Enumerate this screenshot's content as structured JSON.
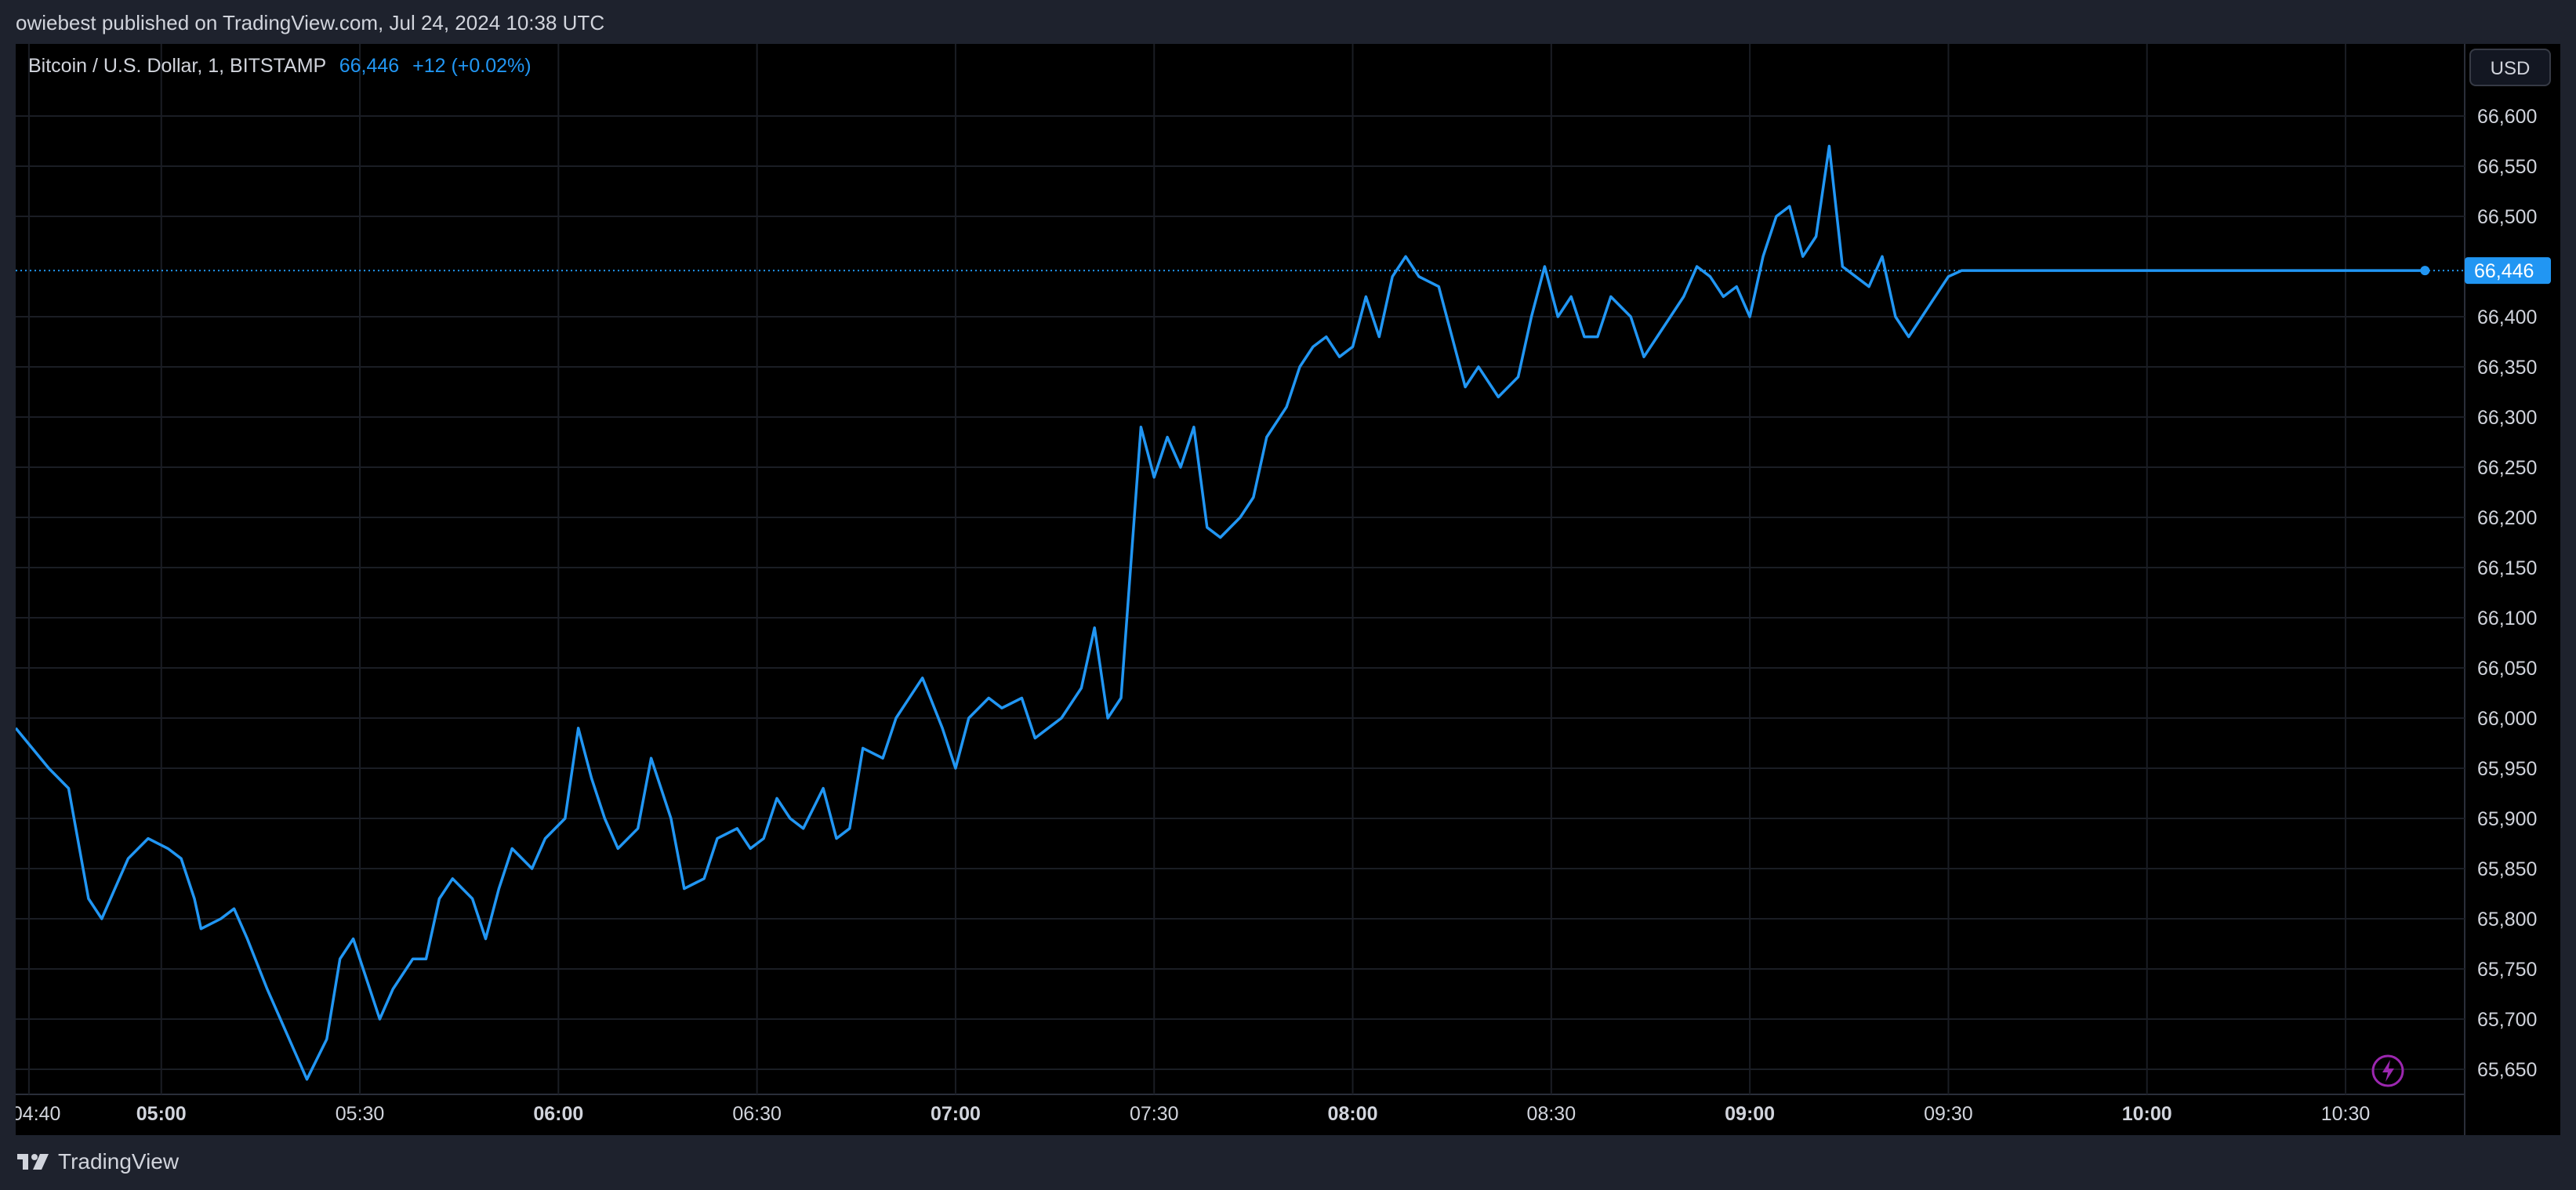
{
  "publish_caption": "owiebest published on TradingView.com, Jul 24, 2024 10:38 UTC",
  "legend": {
    "symbol": "Bitcoin / U.S. Dollar, 1, BITSTAMP",
    "last": "66,446",
    "change": "+12 (+0.02%)"
  },
  "currency_button": "USD",
  "brand": "TradingView",
  "last_price_label": "66,446",
  "colors": {
    "line": "#2196f3",
    "background": "#000000",
    "grid": "#1a1d24",
    "frame": "#1e222d",
    "text": "#d1d4dc",
    "alert_icon": "#9c27b0"
  },
  "icons": [
    "tradingview-logo-icon",
    "lightning-alert-icon"
  ],
  "chart_data": {
    "type": "line",
    "title": "Bitcoin / U.S. Dollar, 1, BITSTAMP",
    "xlabel": "",
    "ylabel": "",
    "ylim": [
      65625,
      66625
    ],
    "xlim": [
      "04:38",
      "10:48"
    ],
    "grid": true,
    "y_ticks": [
      "66,600",
      "66,550",
      "66,500",
      "66,400",
      "66,350",
      "66,300",
      "66,250",
      "66,200",
      "66,150",
      "66,100",
      "66,050",
      "66,000",
      "65,950",
      "65,900",
      "65,850",
      "65,800",
      "65,750",
      "65,700",
      "65,650"
    ],
    "x_ticks": [
      {
        "label": "04:40",
        "time": "04:40",
        "bold": false
      },
      {
        "label": "05:00",
        "time": "05:00",
        "bold": true
      },
      {
        "label": "05:30",
        "time": "05:30",
        "bold": false
      },
      {
        "label": "06:00",
        "time": "06:00",
        "bold": true
      },
      {
        "label": "06:30",
        "time": "06:30",
        "bold": false
      },
      {
        "label": "07:00",
        "time": "07:00",
        "bold": true
      },
      {
        "label": "07:30",
        "time": "07:30",
        "bold": false
      },
      {
        "label": "08:00",
        "time": "08:00",
        "bold": true
      },
      {
        "label": "08:30",
        "time": "08:30",
        "bold": false
      },
      {
        "label": "09:00",
        "time": "09:00",
        "bold": true
      },
      {
        "label": "09:30",
        "time": "09:30",
        "bold": false
      },
      {
        "label": "10:00",
        "time": "10:00",
        "bold": true
      },
      {
        "label": "10:30",
        "time": "10:30",
        "bold": false
      }
    ],
    "last_value": 66446,
    "series": [
      {
        "x": [
          "04:38",
          "04:43",
          "04:46",
          "04:49",
          "04:51",
          "04:53",
          "04:55",
          "04:58",
          "05:01",
          "05:03",
          "05:05",
          "05:06",
          "05:09",
          "05:11",
          "05:13",
          "05:16",
          "05:18",
          "05:20",
          "05:22",
          "05:25",
          "05:27",
          "05:29",
          "05:31",
          "05:33",
          "05:35",
          "05:38",
          "05:40",
          "05:42",
          "05:44",
          "05:47",
          "05:49",
          "05:51",
          "05:53",
          "05:56",
          "05:58",
          "06:01",
          "06:03",
          "06:05",
          "06:07",
          "06:09",
          "06:12",
          "06:14",
          "06:17",
          "06:19",
          "06:22",
          "06:24",
          "06:27",
          "06:29",
          "06:31",
          "06:33",
          "06:35",
          "06:37",
          "06:40",
          "06:42",
          "06:44",
          "06:46",
          "06:49",
          "06:51",
          "06:53",
          "06:55",
          "06:58",
          "07:00",
          "07:02",
          "07:05",
          "07:07",
          "07:10",
          "07:12",
          "07:14",
          "07:16",
          "07:19",
          "07:21",
          "07:23",
          "07:25",
          "07:28",
          "07:30",
          "07:32",
          "07:34",
          "07:36",
          "07:38",
          "07:40",
          "07:43",
          "07:45",
          "07:47",
          "07:50",
          "07:52",
          "07:54",
          "07:56",
          "07:58",
          "08:00",
          "08:02",
          "08:04",
          "08:06",
          "08:08",
          "08:10",
          "08:13",
          "08:15",
          "08:17",
          "08:19",
          "08:22",
          "08:25",
          "08:27",
          "08:29",
          "08:31",
          "08:33",
          "08:35",
          "08:37",
          "08:39",
          "08:42",
          "08:44",
          "08:46",
          "08:48",
          "08:50",
          "08:52",
          "08:54",
          "08:56",
          "08:58",
          "09:00",
          "09:02",
          "09:04",
          "09:06",
          "09:08",
          "09:10",
          "09:12",
          "09:14",
          "09:16",
          "09:18",
          "09:20",
          "09:22",
          "09:24",
          "09:26",
          "09:28",
          "09:30",
          "09:32",
          "09:34",
          "09:36",
          "09:38",
          "09:40",
          "09:42",
          "09:44",
          "09:46",
          "09:48",
          "09:50",
          "09:52",
          "09:54",
          "09:56",
          "09:58",
          "10:00",
          "10:02",
          "10:04",
          "10:06",
          "10:08",
          "10:10",
          "10:12",
          "10:14",
          "10:16",
          "10:18",
          "10:20",
          "10:22",
          "10:24",
          "10:26",
          "10:28",
          "10:30",
          "10:32",
          "10:34",
          "10:36",
          "10:38",
          "10:40",
          "10:42",
          "10:44",
          "10:46",
          "10:48"
        ],
        "values": [
          65990,
          65950,
          65930,
          65820,
          65800,
          65830,
          65860,
          65880,
          65870,
          65860,
          65820,
          65790,
          65800,
          65810,
          65780,
          65730,
          65700,
          65670,
          65640,
          65680,
          65760,
          65780,
          65740,
          65700,
          65730,
          65760,
          65760,
          65820,
          65840,
          65820,
          65780,
          65830,
          65870,
          65850,
          65880,
          65900,
          65990,
          65940,
          65900,
          65870,
          65890,
          65960,
          65900,
          65830,
          65840,
          65880,
          65890,
          65870,
          65880,
          65920,
          65900,
          65890,
          65930,
          65880,
          65890,
          65970,
          65960,
          66000,
          66020,
          66040,
          65990,
          65950,
          66000,
          66020,
          66010,
          66020,
          65980,
          65990,
          66000,
          66030,
          66090,
          66000,
          66020,
          66290,
          66240,
          66280,
          66250,
          66290,
          66190,
          66180,
          66200,
          66220,
          66280,
          66310,
          66350,
          66370,
          66380,
          66360,
          66370,
          66420,
          66380,
          66440,
          66460,
          66440,
          66430,
          66380,
          66330,
          66350,
          66320,
          66340,
          66400,
          66450,
          66400,
          66420,
          66380,
          66380,
          66420,
          66400,
          66360,
          66380,
          66400,
          66420,
          66450,
          66440,
          66420,
          66430,
          66400,
          66460,
          66500,
          66510,
          66460,
          66480,
          66570,
          66450,
          66440,
          66430,
          66460,
          66400,
          66380,
          66400,
          66420,
          66440,
          66446,
          66446,
          66446,
          66446,
          66446,
          66446,
          66446,
          66446,
          66446,
          66446,
          66446,
          66446,
          66446,
          66446,
          66446,
          66446,
          66446,
          66446,
          66446,
          66446,
          66446,
          66446,
          66446,
          66446,
          66446,
          66446,
          66446,
          66446,
          66446,
          66446,
          66446,
          66446,
          66446,
          66446,
          66446,
          66446,
          66446,
          66446,
          66446
        ]
      }
    ]
  }
}
